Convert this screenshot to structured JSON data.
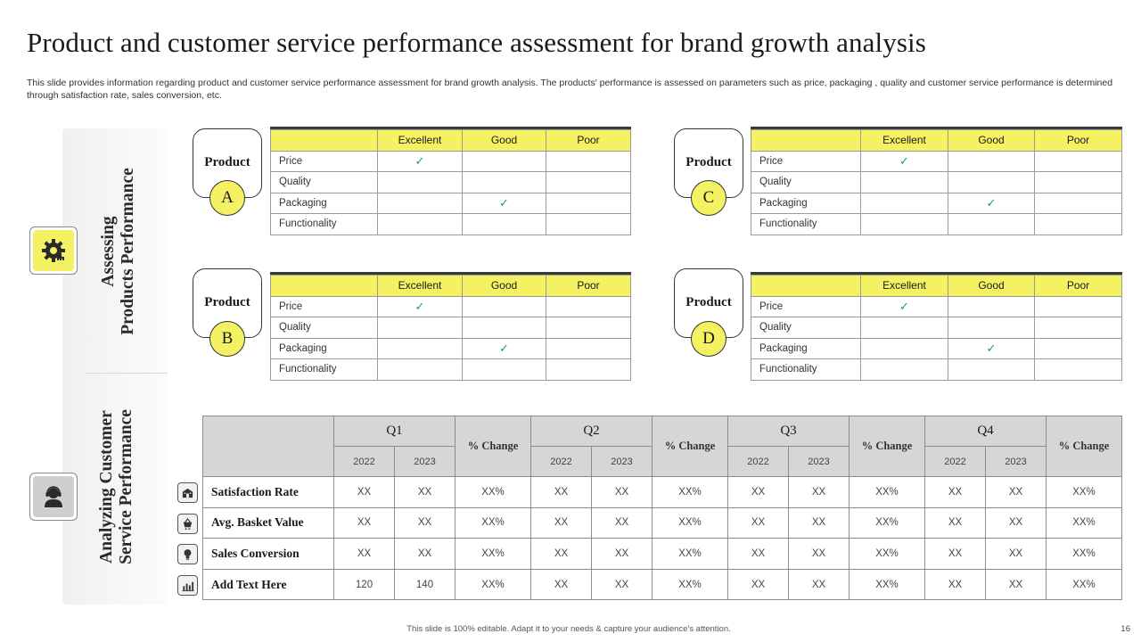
{
  "title": "Product and customer service performance assessment for brand growth analysis",
  "subtitle": "This slide provides information regarding product and customer service performance assessment for brand growth analysis. The products' performance is assessed  on parameters such as price, packaging , quality and customer service performance is determined through satisfaction rate, sales conversion, etc.",
  "sections": {
    "products": {
      "line1": "Assessing",
      "line2": "Products Performance",
      "icon": "gear-settings-icon"
    },
    "service": {
      "line1": "Analyzing Customer",
      "line2": "Service Performance",
      "icon": "customer-service-icon"
    }
  },
  "rating_headers": [
    "Excellent",
    "Good",
    "Poor"
  ],
  "check_mark": "✓",
  "check_color": "#1aa34a",
  "accent_color": "#f4f163",
  "products": [
    {
      "label": "Product",
      "letter": "A",
      "rows": [
        {
          "param": "Price",
          "rating": "Excellent"
        },
        {
          "param": "Quality",
          "rating": ""
        },
        {
          "param": "Packaging",
          "rating": "Good"
        },
        {
          "param": "Functionality",
          "rating": ""
        }
      ]
    },
    {
      "label": "Product",
      "letter": "C",
      "rows": [
        {
          "param": "Price",
          "rating": "Excellent"
        },
        {
          "param": "Quality",
          "rating": ""
        },
        {
          "param": "Packaging",
          "rating": "Good"
        },
        {
          "param": "Functionality",
          "rating": ""
        }
      ]
    },
    {
      "label": "Product",
      "letter": "B",
      "rows": [
        {
          "param": "Price",
          "rating": "Excellent"
        },
        {
          "param": "Quality",
          "rating": ""
        },
        {
          "param": "Packaging",
          "rating": "Good"
        },
        {
          "param": "Functionality",
          "rating": ""
        }
      ]
    },
    {
      "label": "Product",
      "letter": "D",
      "rows": [
        {
          "param": "Price",
          "rating": "Excellent"
        },
        {
          "param": "Quality",
          "rating": ""
        },
        {
          "param": "Packaging",
          "rating": "Good"
        },
        {
          "param": "Functionality",
          "rating": ""
        }
      ]
    }
  ],
  "performance": {
    "quarters": [
      "Q1",
      "Q2",
      "Q3",
      "Q4"
    ],
    "years": [
      "2022",
      "2023"
    ],
    "change_label": "% Change",
    "rows": [
      {
        "label": "Satisfaction Rate",
        "icon": "building-icon",
        "values": [
          "XX",
          "XX",
          "XX%",
          "XX",
          "XX",
          "XX%",
          "XX",
          "XX",
          "XX%",
          "XX",
          "XX",
          "XX%"
        ]
      },
      {
        "label": "Avg. Basket Value",
        "icon": "shopping-basket-icon",
        "values": [
          "XX",
          "XX",
          "XX%",
          "XX",
          "XX",
          "XX%",
          "XX",
          "XX",
          "XX%",
          "XX",
          "XX",
          "XX%"
        ]
      },
      {
        "label": "Sales Conversion",
        "icon": "lightbulb-icon",
        "values": [
          "XX",
          "XX",
          "XX%",
          "XX",
          "XX",
          "XX%",
          "XX",
          "XX",
          "XX%",
          "XX",
          "XX",
          "XX%"
        ]
      },
      {
        "label": "Add Text Here",
        "icon": "bar-chart-icon",
        "values": [
          "120",
          "140",
          "XX%",
          "XX",
          "XX",
          "XX%",
          "XX",
          "XX",
          "XX%",
          "XX",
          "XX",
          "XX%"
        ]
      }
    ]
  },
  "footer": "This slide is 100% editable.  Adapt it to your needs & capture your audience's attention.",
  "page_number": "16"
}
